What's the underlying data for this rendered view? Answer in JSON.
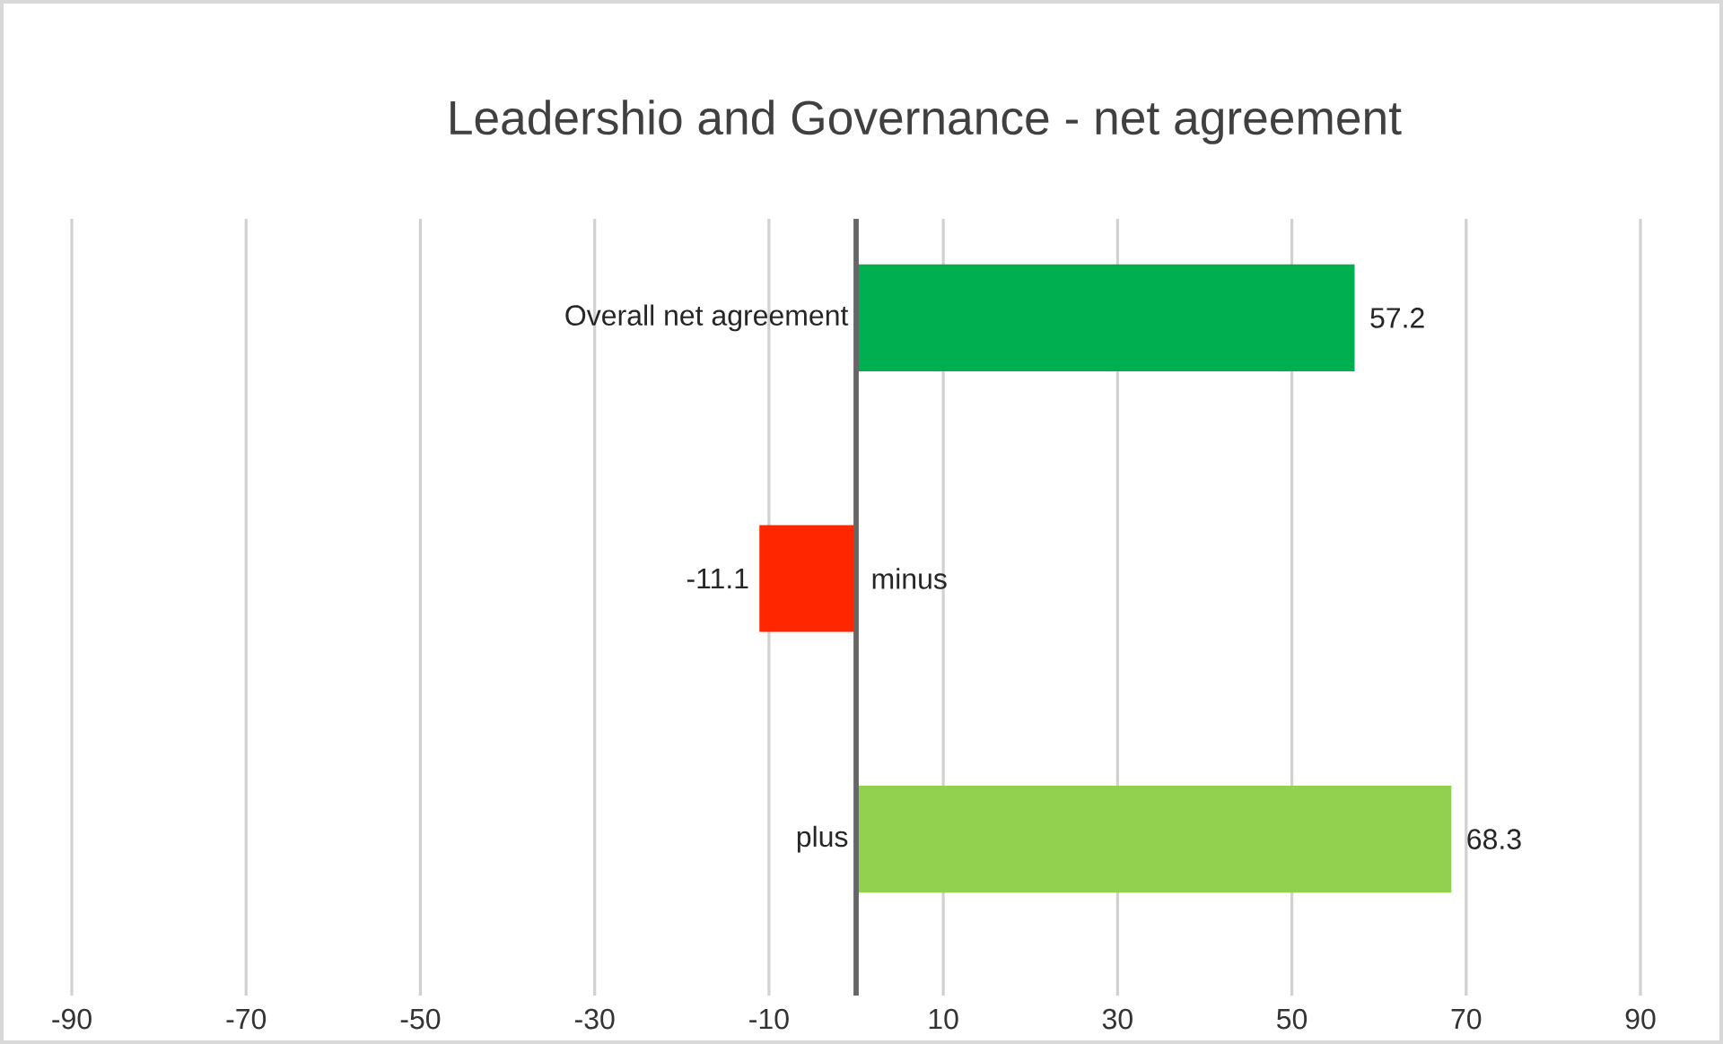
{
  "chart_data": {
    "type": "bar",
    "orientation": "horizontal",
    "title": "Leadershio and Governance - net agreement",
    "categories": [
      "Overall net agreement",
      "minus",
      "plus"
    ],
    "values": [
      57.2,
      -11.1,
      68.3
    ],
    "colors": [
      "#00b050",
      "#ff2600",
      "#92d050"
    ],
    "xlim": [
      -90,
      90
    ],
    "xticks": [
      -90,
      -70,
      -50,
      -30,
      -10,
      10,
      30,
      50,
      70,
      90
    ],
    "grid": "x",
    "data_labels": true
  }
}
